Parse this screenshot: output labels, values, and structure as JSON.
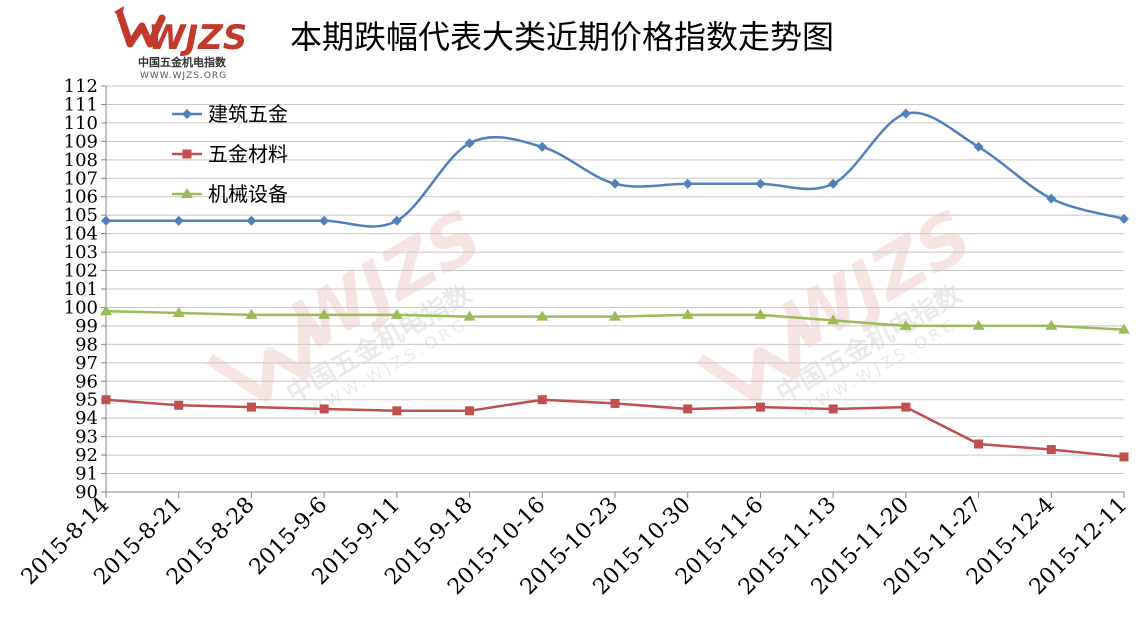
{
  "header": {
    "title": "本期跌幅代表大类近期价格指数走势图",
    "logo_text": "WJZS",
    "logo_cn": "中国五金机电指数",
    "logo_url": "WWW.WJZS.ORG"
  },
  "watermark": {
    "text": "WJZS",
    "cn": "中国五金机电指数",
    "url": "WWW.WJZS.ORG"
  },
  "colors": {
    "blue": "#4F81BD",
    "red": "#C0504D",
    "green": "#9BBB59",
    "logo_red": "#C0392B"
  },
  "chart_data": {
    "type": "line",
    "title": "本期跌幅代表大类近期价格指数走势图",
    "categories": [
      "2015-8-14",
      "2015-8-21",
      "2015-8-28",
      "2015-9-6",
      "2015-9-11",
      "2015-9-18",
      "2015-10-16",
      "2015-10-23",
      "2015-10-30",
      "2015-11-6",
      "2015-11-13",
      "2015-11-20",
      "2015-11-27",
      "2015-12-4",
      "2015-12-11"
    ],
    "ylim": [
      90,
      112
    ],
    "yticks": [
      90,
      91,
      92,
      93,
      94,
      95,
      96,
      97,
      98,
      99,
      100,
      101,
      102,
      103,
      104,
      105,
      106,
      107,
      108,
      109,
      110,
      111,
      112
    ],
    "grid": true,
    "legend_position": "top-left",
    "series": [
      {
        "name": "建筑五金",
        "color": "#4F81BD",
        "marker": "diamond",
        "smooth": true,
        "values": [
          104.7,
          104.7,
          104.7,
          104.7,
          104.7,
          108.9,
          108.7,
          106.7,
          106.7,
          106.7,
          106.7,
          110.5,
          108.7,
          105.9,
          104.8
        ]
      },
      {
        "name": "五金材料",
        "color": "#C0504D",
        "marker": "square",
        "smooth": false,
        "values": [
          95.0,
          94.7,
          94.6,
          94.5,
          94.4,
          94.4,
          95.0,
          94.8,
          94.5,
          94.6,
          94.5,
          94.6,
          92.6,
          92.3,
          91.9
        ]
      },
      {
        "name": "机械设备",
        "color": "#9BBB59",
        "marker": "triangle",
        "smooth": false,
        "values": [
          99.8,
          99.7,
          99.6,
          99.6,
          99.6,
          99.5,
          99.5,
          99.5,
          99.6,
          99.6,
          99.3,
          99.0,
          99.0,
          99.0,
          98.8
        ]
      }
    ]
  }
}
